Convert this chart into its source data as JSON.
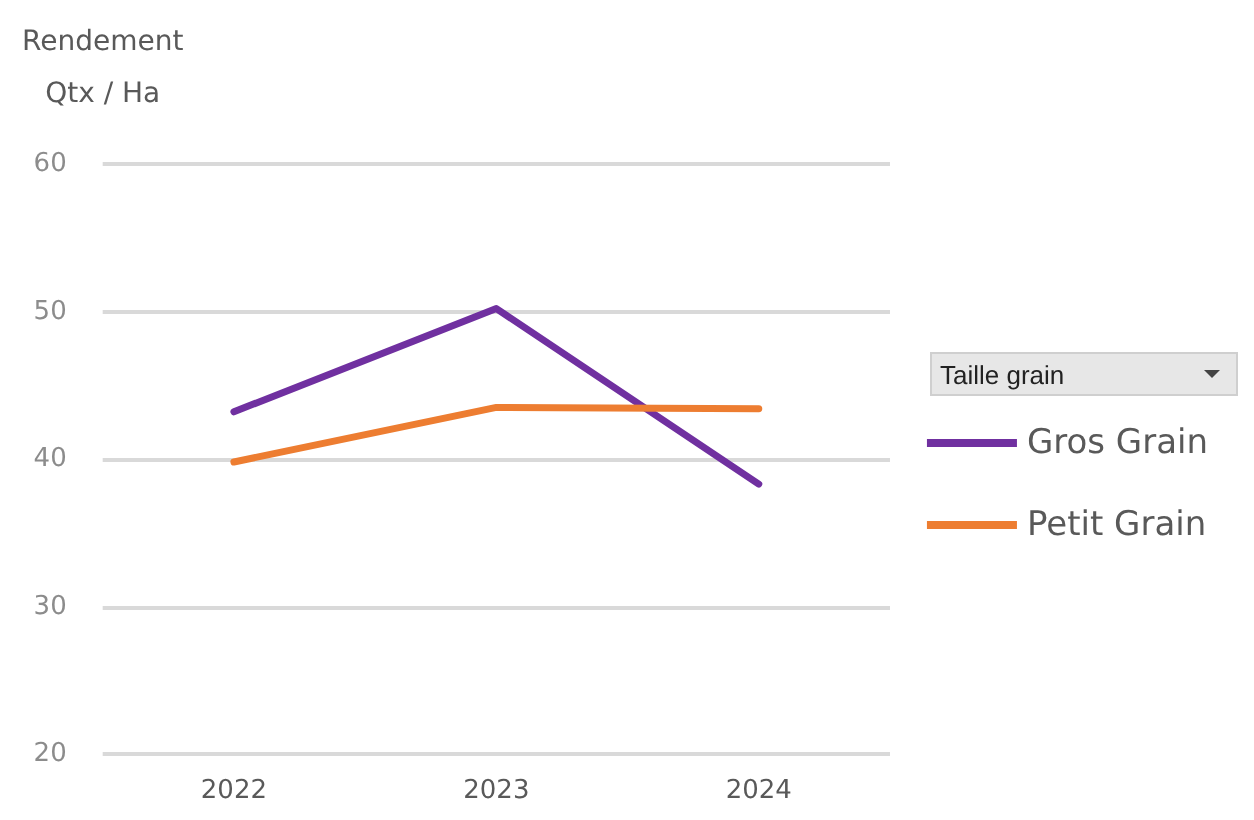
{
  "chart_data": {
    "type": "line",
    "ylabel": "Rendement\nQtx / Ha",
    "legend_title": "Taille grain",
    "categories": [
      "2022",
      "2023",
      "2024"
    ],
    "series": [
      {
        "name": "Gros Grain",
        "color": "#7030a0",
        "values": [
          43.2,
          50.2,
          38.3
        ]
      },
      {
        "name": "Petit Grain",
        "color": "#ed7d31",
        "values": [
          39.8,
          43.5,
          43.4
        ]
      }
    ],
    "ylim": [
      20,
      60
    ],
    "yticks": [
      20,
      30,
      40,
      50,
      60
    ],
    "grid": "y",
    "legend": "right",
    "marker": "none",
    "line_style": "solid"
  }
}
